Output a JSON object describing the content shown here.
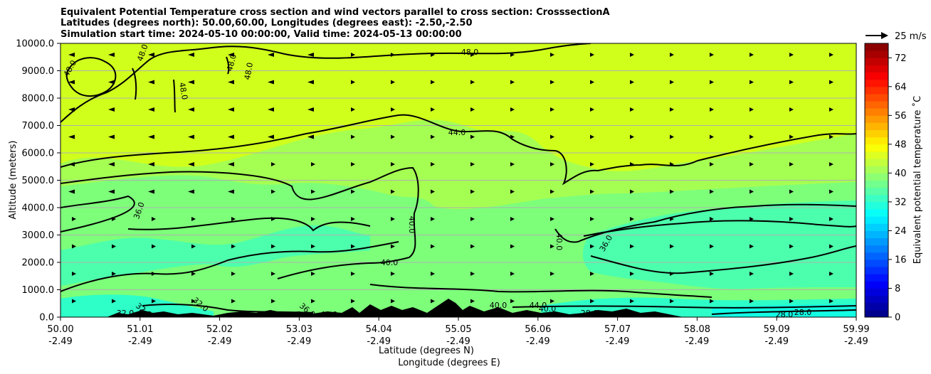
{
  "chart_data": {
    "type": "contour cross-section",
    "title_lines": [
      "Equivalent Potential Temperature cross section and wind vectors parallel to cross section: CrosssectionA",
      "Latitudes (degrees north): 50.00,60.00, Longitudes (degrees east): -2.50,-2.50",
      "Simulation start time: 2024-05-10 00:00:00, Valid time: 2024-05-13 00:00:00"
    ],
    "xlabel": "Latitude (degrees N)",
    "xlabel2": "Longitude (degrees E)",
    "ylabel": "Altitude (meters)",
    "colorbar_label": "Equivalent potential temperature ˚C",
    "quiver_key_label": "25 m/s",
    "x_ticks": [
      {
        "lat": "50.00",
        "lon": "-2.49"
      },
      {
        "lat": "51.01",
        "lon": "-2.49"
      },
      {
        "lat": "52.02",
        "lon": "-2.49"
      },
      {
        "lat": "53.03",
        "lon": "-2.49"
      },
      {
        "lat": "54.04",
        "lon": "-2.49"
      },
      {
        "lat": "55.05",
        "lon": "-2.49"
      },
      {
        "lat": "56.06",
        "lon": "-2.49"
      },
      {
        "lat": "57.07",
        "lon": "-2.49"
      },
      {
        "lat": "58.08",
        "lon": "-2.49"
      },
      {
        "lat": "59.09",
        "lon": "-2.49"
      },
      {
        "lat": "59.99",
        "lon": "-2.49"
      }
    ],
    "y_ticks": [
      "0.0",
      "1000.0",
      "2000.0",
      "3000.0",
      "4000.0",
      "5000.0",
      "6000.0",
      "7000.0",
      "8000.0",
      "9000.0",
      "10000.0"
    ],
    "ylim": [
      0,
      10000
    ],
    "colorbar_ticks": [
      "0",
      "8",
      "16",
      "24",
      "32",
      "40",
      "48",
      "56",
      "64",
      "72"
    ],
    "colorbar_range": [
      0,
      76
    ],
    "grid": "horizontal",
    "contour_levels": [
      28,
      32,
      36,
      40,
      44,
      48
    ],
    "contour_labels": [
      "48.0",
      "48.0",
      "48.0",
      "48.0",
      "48.0",
      "48.0",
      "44.0",
      "36.0",
      "40.0",
      "40.0",
      "40.0",
      "36.0",
      "32.0",
      "36.0",
      "40.0",
      "28.0",
      "28.0",
      "28.0",
      "40.0",
      "44.0",
      "40.0",
      "32.0",
      "32.0"
    ],
    "colors": {
      "band_44_plus": "#d0ff1c",
      "band_40_44": "#a5ff52",
      "band_36_40": "#7dff7a",
      "band_32_36": "#4cffac",
      "band_28_32": "#2effc8",
      "band_below_28": "#13fce4",
      "terrain": "#000000",
      "contour": "#000000",
      "grid": "#b0b0b0"
    }
  }
}
